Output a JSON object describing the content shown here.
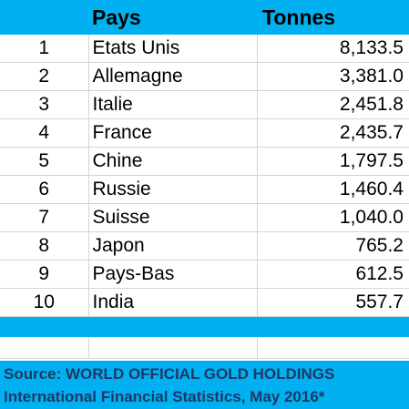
{
  "header": {
    "rank": "",
    "country": "Pays",
    "tonnes": "Tonnes"
  },
  "rows": [
    {
      "rank": "1",
      "country": "Etats Unis",
      "tonnes": "8,133.5"
    },
    {
      "rank": "2",
      "country": "Allemagne",
      "tonnes": "3,381.0"
    },
    {
      "rank": "3",
      "country": "Italie",
      "tonnes": "2,451.8"
    },
    {
      "rank": "4",
      "country": "France",
      "tonnes": "2,435.7"
    },
    {
      "rank": "5",
      "country": "Chine",
      "tonnes": "1,797.5"
    },
    {
      "rank": "6",
      "country": "Russie",
      "tonnes": "1,460.4"
    },
    {
      "rank": "7",
      "country": "Suisse",
      "tonnes": "1,040.0"
    },
    {
      "rank": "8",
      "country": "Japon",
      "tonnes": "765.2"
    },
    {
      "rank": "9",
      "country": "Pays-Bas",
      "tonnes": "612.5"
    },
    {
      "rank": "10",
      "country": "India",
      "tonnes": "557.7"
    }
  ],
  "source": {
    "line1": "Source: WORLD OFFICIAL GOLD HOLDINGS",
    "line2": "International Financial Statistics, May 2016*"
  },
  "colors": {
    "accent": "#00b0f0",
    "source_text": "#1f3864",
    "grid": "#d4d4d4"
  }
}
